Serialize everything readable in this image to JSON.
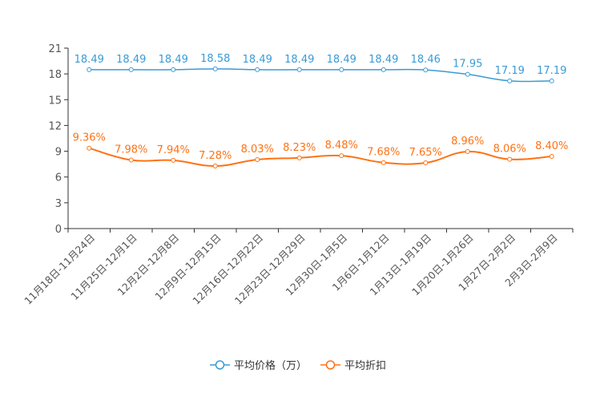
{
  "chart_data": {
    "type": "line",
    "title": "",
    "xlabel": "",
    "ylabel": "",
    "ylim": [
      0,
      21
    ],
    "yticks": [
      0,
      3,
      6,
      9,
      12,
      15,
      18,
      21
    ],
    "grid": false,
    "legend_position": "bottom",
    "categories": [
      "11月18日-11月24日",
      "11月25日-12月1日",
      "12月2日-12月8日",
      "12月9日-12月15日",
      "12月16日-12月22日",
      "12月23日-12月29日",
      "12月30日-1月5日",
      "1月6日-1月12日",
      "1月13日-1月19日",
      "1月20日-1月26日",
      "1月27日-2月2日",
      "2月3日-2月9日"
    ],
    "series": [
      {
        "name": "平均价格（万）",
        "color": "#3a9bd5",
        "values": [
          18.49,
          18.49,
          18.49,
          18.58,
          18.49,
          18.49,
          18.49,
          18.49,
          18.46,
          17.95,
          17.19,
          17.19
        ],
        "labels": [
          "18.49",
          "18.49",
          "18.49",
          "18.58",
          "18.49",
          "18.49",
          "18.49",
          "18.49",
          "18.46",
          "17.95",
          "17.19",
          "17.19"
        ]
      },
      {
        "name": "平均折扣",
        "color": "#ff7214",
        "values": [
          9.36,
          7.98,
          7.94,
          7.28,
          8.03,
          8.23,
          8.48,
          7.68,
          7.65,
          8.96,
          8.06,
          8.4
        ],
        "labels": [
          "9.36%",
          "7.98%",
          "7.94%",
          "7.28%",
          "8.03%",
          "8.23%",
          "8.48%",
          "7.68%",
          "7.65%",
          "8.96%",
          "8.06%",
          "8.40%"
        ]
      }
    ]
  }
}
